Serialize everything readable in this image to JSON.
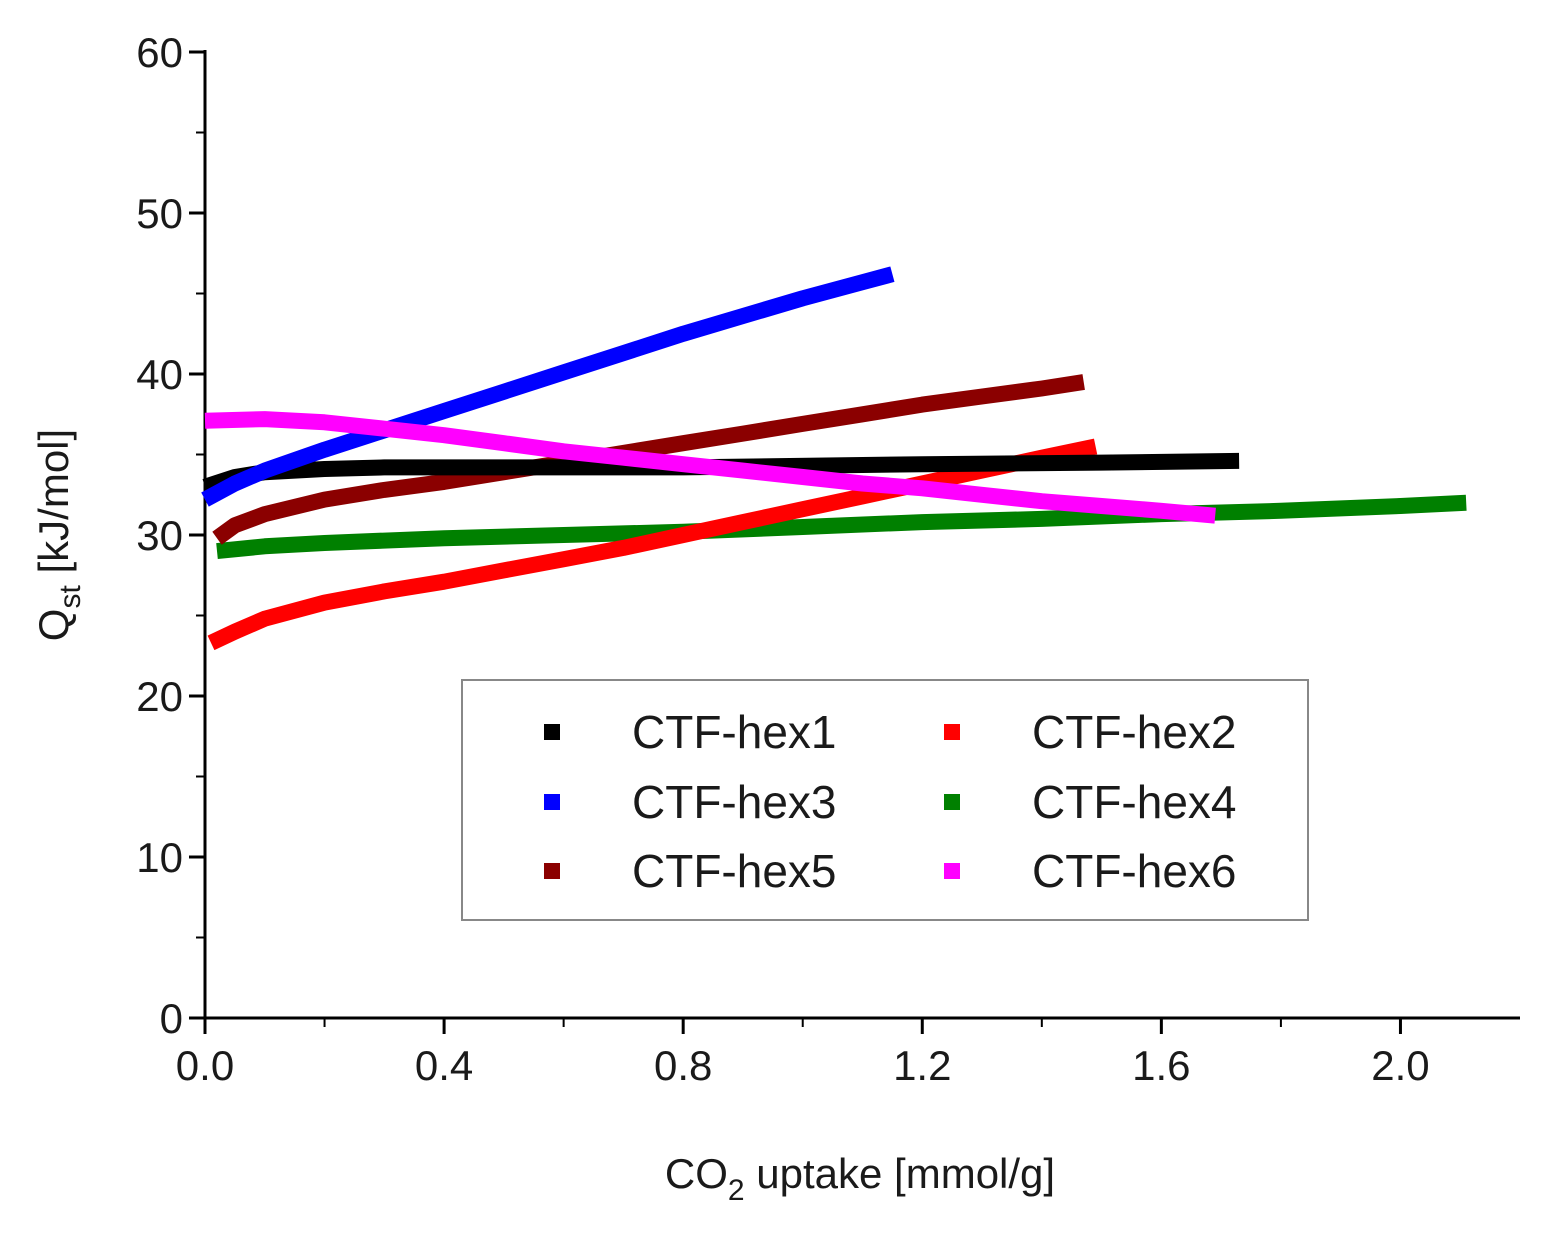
{
  "chart_data": {
    "type": "line",
    "title": "",
    "xlabel": "CO2 uptake [mmol/g]",
    "xlabel_parts": {
      "prefix": "CO",
      "subscript": "2",
      "suffix": " uptake [mmol/g]"
    },
    "ylabel": "Qst [kJ/mol]",
    "ylabel_parts": {
      "prefix": "Q",
      "subscript": "st",
      "suffix": " [kJ/mol]"
    },
    "xlim": [
      0.0,
      2.2
    ],
    "ylim": [
      0,
      60
    ],
    "x_ticks": [
      0.0,
      0.4,
      0.8,
      1.2,
      1.6,
      2.0
    ],
    "x_tick_labels": [
      "0.0",
      "0.4",
      "0.8",
      "1.2",
      "1.6",
      "2.0"
    ],
    "y_ticks": [
      0,
      10,
      20,
      30,
      40,
      50,
      60
    ],
    "y_tick_labels": [
      "0",
      "10",
      "20",
      "30",
      "40",
      "50",
      "60"
    ],
    "grid": false,
    "legend_position": "lower-right inside plot, two columns",
    "series": [
      {
        "name": "CTF-hex1",
        "color": "#000000",
        "x": [
          0.0,
          0.05,
          0.1,
          0.2,
          0.3,
          0.5,
          0.8,
          1.2,
          1.5,
          1.73
        ],
        "y": [
          33.0,
          33.6,
          33.9,
          34.1,
          34.2,
          34.2,
          34.2,
          34.4,
          34.5,
          34.6
        ]
      },
      {
        "name": "CTF-hex2",
        "color": "#ff0000",
        "x": [
          0.01,
          0.05,
          0.1,
          0.2,
          0.3,
          0.4,
          0.5,
          0.6,
          0.7,
          0.8,
          0.9,
          1.0,
          1.1,
          1.2,
          1.3,
          1.4,
          1.49
        ],
        "y": [
          23.3,
          24.0,
          24.8,
          25.8,
          26.5,
          27.1,
          27.8,
          28.5,
          29.2,
          30.0,
          30.8,
          31.6,
          32.4,
          33.2,
          34.0,
          34.8,
          35.5
        ]
      },
      {
        "name": "CTF-hex3",
        "color": "#0000ff",
        "x": [
          0.0,
          0.05,
          0.1,
          0.2,
          0.3,
          0.4,
          0.5,
          0.6,
          0.7,
          0.8,
          0.9,
          1.0,
          1.1,
          1.15
        ],
        "y": [
          32.2,
          33.2,
          34.0,
          35.3,
          36.5,
          37.7,
          38.9,
          40.1,
          41.3,
          42.5,
          43.6,
          44.7,
          45.7,
          46.2
        ]
      },
      {
        "name": "CTF-hex4",
        "color": "#008000",
        "x": [
          0.02,
          0.1,
          0.2,
          0.4,
          0.6,
          0.8,
          1.0,
          1.2,
          1.4,
          1.6,
          1.8,
          2.0,
          2.11
        ],
        "y": [
          29.0,
          29.3,
          29.5,
          29.8,
          30.0,
          30.2,
          30.5,
          30.8,
          31.0,
          31.3,
          31.5,
          31.8,
          32.0
        ]
      },
      {
        "name": "CTF-hex5",
        "color": "#8b0000",
        "x": [
          0.02,
          0.05,
          0.1,
          0.2,
          0.3,
          0.4,
          0.5,
          0.6,
          0.7,
          0.8,
          0.9,
          1.0,
          1.1,
          1.2,
          1.3,
          1.4,
          1.47
        ],
        "y": [
          29.8,
          30.6,
          31.3,
          32.2,
          32.8,
          33.3,
          33.9,
          34.5,
          35.1,
          35.7,
          36.3,
          36.9,
          37.5,
          38.1,
          38.6,
          39.1,
          39.5
        ]
      },
      {
        "name": "CTF-hex6",
        "color": "#ff00ff",
        "x": [
          0.0,
          0.1,
          0.2,
          0.3,
          0.4,
          0.5,
          0.6,
          0.7,
          0.8,
          0.9,
          1.0,
          1.1,
          1.2,
          1.3,
          1.4,
          1.5,
          1.6,
          1.69
        ],
        "y": [
          37.1,
          37.2,
          37.0,
          36.6,
          36.2,
          35.7,
          35.2,
          34.8,
          34.4,
          34.0,
          33.6,
          33.2,
          32.9,
          32.5,
          32.1,
          31.8,
          31.5,
          31.2
        ]
      }
    ]
  }
}
